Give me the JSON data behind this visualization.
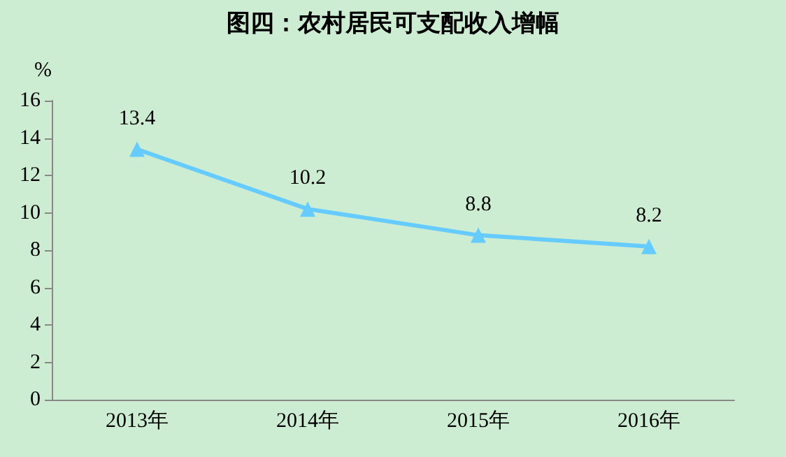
{
  "chart_data": {
    "type": "line",
    "title": "图四：农村居民可支配收入增幅",
    "ylabel": "%",
    "categories": [
      "2013年",
      "2014年",
      "2015年",
      "2016年"
    ],
    "series": [
      {
        "color": "#66ccff",
        "values": [
          13.4,
          10.2,
          8.8,
          8.2
        ]
      }
    ],
    "ylim": [
      0,
      16
    ],
    "yticks": [
      0,
      2,
      4,
      6,
      8,
      10,
      12,
      14,
      16
    ],
    "grid": false,
    "marker": "triangle",
    "line_style": "solid",
    "data_labels": true
  }
}
